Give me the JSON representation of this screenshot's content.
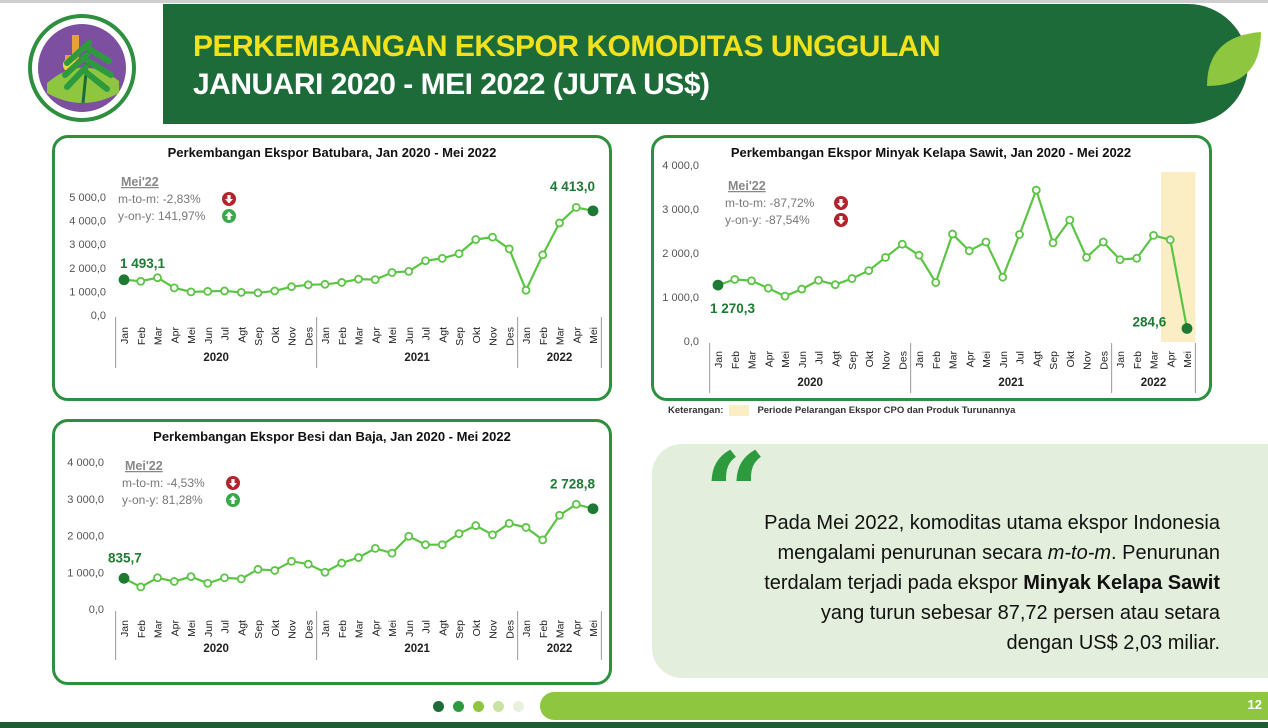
{
  "header": {
    "title_line1": "PERKEMBANGAN EKSPOR KOMODITAS UNGGULAN",
    "title_line2": "JANUARI 2020 - MEI 2022 (JUTA US$)"
  },
  "months": [
    "Jan",
    "Feb",
    "Mar",
    "Apr",
    "Mei",
    "Jun",
    "Jul",
    "Agt",
    "Sep",
    "Okt",
    "Nov",
    "Des",
    "Jan",
    "Feb",
    "Mar",
    "Apr",
    "Mei",
    "Jun",
    "Jul",
    "Agt",
    "Sep",
    "Okt",
    "Nov",
    "Des",
    "Jan",
    "Feb",
    "Mar",
    "Apr",
    "Mei"
  ],
  "years": [
    "2020",
    "2021",
    "2022"
  ],
  "chart_data": [
    {
      "type": "line",
      "title": "Perkembangan Ekspor Batubara, Jan 2020 - Mei 2022",
      "yticks": [
        "5 000,0",
        "4 000,0",
        "3 000,0",
        "2 000,0",
        "1 000,0",
        "0,0"
      ],
      "ylim": [
        0,
        5000
      ],
      "values": [
        1493.1,
        1430,
        1580,
        1150,
        980,
        1000,
        1020,
        960,
        940,
        1020,
        1200,
        1280,
        1300,
        1380,
        1520,
        1500,
        1800,
        1850,
        2300,
        2400,
        2600,
        3200,
        3300,
        2800,
        1050,
        2550,
        3900,
        4560,
        4413.0
      ],
      "labels": {
        "first": "1 493,1",
        "last": "4 413,0"
      },
      "note": {
        "heading": "Mei'22",
        "mtm": "m-to-m: -2,83%",
        "yoy": "y-on-y: 141,97%"
      }
    },
    {
      "type": "line",
      "title": "Perkembangan Ekspor Minyak Kelapa Sawit, Jan 2020 - Mei 2022",
      "yticks": [
        "4 000,0",
        "3 000,0",
        "2 000,0",
        "1 000,0",
        "0,0"
      ],
      "ylim": [
        0,
        4000
      ],
      "values": [
        1270.3,
        1400,
        1370,
        1200,
        1020,
        1180,
        1380,
        1280,
        1420,
        1600,
        1900,
        2200,
        1950,
        1330,
        2430,
        2050,
        2250,
        1450,
        2420,
        3430,
        2230,
        2750,
        1900,
        2250,
        1850,
        1880,
        2400,
        2300,
        284.6
      ],
      "labels": {
        "first": "1 270,3",
        "last": "284,6"
      },
      "note": {
        "heading": "Mei'22",
        "mtm": "m-to-m: -87,72%",
        "yoy": "y-on-y: -87,54%"
      }
    },
    {
      "type": "line",
      "title": "Perkembangan Ekspor Besi dan Baja, Jan 2020 - Mei 2022",
      "yticks": [
        "4 000,0",
        "3 000,0",
        "2 000,0",
        "1 000,0",
        "0,0"
      ],
      "ylim": [
        0,
        4000
      ],
      "values": [
        835.7,
        600,
        850,
        750,
        880,
        700,
        850,
        820,
        1080,
        1050,
        1300,
        1220,
        1000,
        1250,
        1400,
        1650,
        1520,
        1980,
        1750,
        1750,
        2050,
        2270,
        2020,
        2330,
        2220,
        1880,
        2550,
        2850,
        2728.8
      ],
      "labels": {
        "first": "835,7",
        "last": "2 728,8"
      },
      "note": {
        "heading": "Mei'22",
        "mtm": "m-to-m: -4,53%",
        "yoy": "y-on-y: 81,28%"
      }
    }
  ],
  "legend": {
    "label": "Keterangan:",
    "text": "Periode Pelarangan Ekspor CPO dan Produk Turunannya"
  },
  "quote": {
    "line1": "Pada Mei 2022, komoditas utama ekspor Indonesia",
    "line2a": "mengalami penurunan secara ",
    "line2b": "m-to-m",
    "line2c": ". Penurunan",
    "line3a": "terdalam terjadi pada ekspor ",
    "line3b": "Minyak Kelapa Sawit",
    "line4": "yang turun sebesar 87,72 persen  atau setara",
    "line5": "dengan US$ 2,03 miliar."
  },
  "footer": {
    "page": "12"
  },
  "colors": {
    "dark_green": "#1e6b3a",
    "line_green": "#5cc444",
    "down": "#b3232b",
    "up": "#3aa84a",
    "highlight": "#fbeec4",
    "yellow_title": "#f2e21b"
  }
}
